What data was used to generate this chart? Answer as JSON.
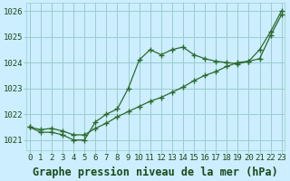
{
  "title": "Graphe pression niveau de la mer (hPa)",
  "x_labels": [
    "0",
    "1",
    "2",
    "3",
    "4",
    "5",
    "6",
    "7",
    "8",
    "9",
    "10",
    "11",
    "12",
    "13",
    "14",
    "15",
    "16",
    "17",
    "18",
    "19",
    "20",
    "21",
    "22",
    "23"
  ],
  "x_values": [
    0,
    1,
    2,
    3,
    4,
    5,
    6,
    7,
    8,
    9,
    10,
    11,
    12,
    13,
    14,
    15,
    16,
    17,
    18,
    19,
    20,
    21,
    22,
    23
  ],
  "series_jagged": [
    1021.5,
    1021.3,
    1021.3,
    1021.2,
    1021.0,
    1021.0,
    1021.7,
    1022.0,
    1022.2,
    1023.0,
    1024.1,
    1024.5,
    1024.3,
    1024.5,
    1024.6,
    1024.3,
    1024.15,
    1024.05,
    1024.0,
    1023.95,
    1024.05,
    1024.5,
    1025.2,
    1026.0
  ],
  "series_straight": [
    1021.5,
    1021.4,
    1021.45,
    1021.35,
    1021.2,
    1021.2,
    1021.45,
    1021.65,
    1021.9,
    1022.1,
    1022.3,
    1022.5,
    1022.65,
    1022.85,
    1023.05,
    1023.3,
    1023.5,
    1023.65,
    1023.85,
    1024.0,
    1024.05,
    1024.15,
    1025.05,
    1025.85
  ],
  "line_color": "#2d6a2d",
  "marker": "+",
  "bg_color": "#cceeff",
  "grid_color": "#99cccc",
  "text_color": "#1a4a1a",
  "ylim": [
    1020.6,
    1026.3
  ],
  "yticks": [
    1021,
    1022,
    1023,
    1024,
    1025,
    1026
  ],
  "xlim": [
    -0.3,
    23.3
  ],
  "title_fontsize": 8.5,
  "tick_fontsize": 6.5,
  "lw": 0.9,
  "markersize": 4,
  "markeredgewidth": 1.0
}
